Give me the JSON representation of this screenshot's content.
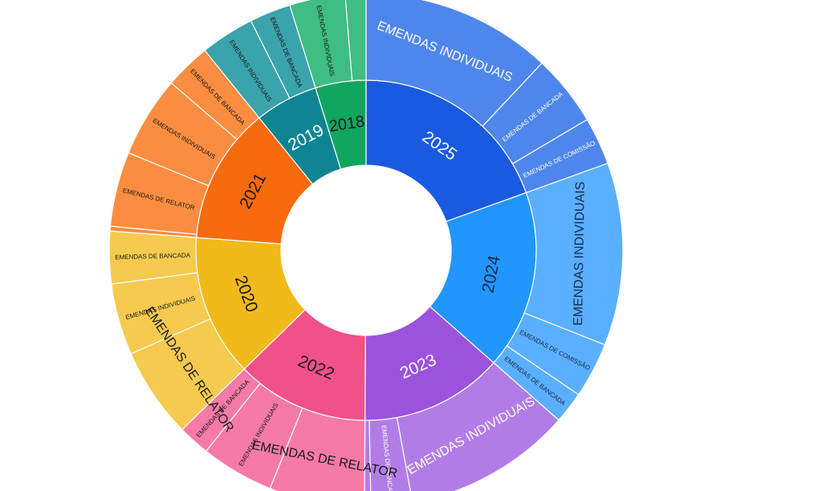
{
  "chart_data": {
    "type": "sunburst",
    "unit": "share",
    "years": [
      {
        "label": "2025",
        "color": "#1a5ae0",
        "child_color": "#4f86ec",
        "text_color": "#ffffff",
        "value": 0.195,
        "children": [
          {
            "label": "EMENDAS INDIVIDUAIS",
            "value": 0.12,
            "text_color": "#ffffff"
          },
          {
            "label": "EMENDAS DE BANCADA",
            "value": 0.045,
            "text_color": "#ffffff"
          },
          {
            "label": "EMENDAS DE COMISSÃO",
            "value": 0.03,
            "text_color": "#ffffff"
          }
        ]
      },
      {
        "label": "2024",
        "color": "#2196ff",
        "child_color": "#5aafff",
        "text_color": "#1a2a4a",
        "value": 0.17,
        "children": [
          {
            "label": "EMENDAS INDIVIDUAIS",
            "value": 0.115,
            "text_color": "#1a2a4a"
          },
          {
            "label": "EMENDAS DE COMISSÃO",
            "value": 0.035,
            "text_color": "#1a2a4a"
          },
          {
            "label": "EMENDAS DE BANCADA",
            "value": 0.02,
            "text_color": "#1a2a4a"
          }
        ]
      },
      {
        "label": "2023",
        "color": "#9b52dc",
        "child_color": "#b27ce6",
        "text_color": "#ffffff",
        "value": 0.136,
        "children": [
          {
            "label": "EMENDAS INDIVIDUAIS",
            "value": 0.106,
            "text_color": "#ffffff"
          },
          {
            "label": "EMENDAS DE BANCADA",
            "value": 0.026,
            "text_color": "#ffffff"
          },
          {
            "label": "",
            "value": 0.004,
            "text_color": "#ffffff"
          }
        ]
      },
      {
        "label": "2022",
        "color": "#f2508a",
        "child_color": "#f57aa6",
        "text_color": "#1a1a1a",
        "value": 0.126,
        "children": [
          {
            "label": "EMENDAS DE RELATOR",
            "value": 0.06,
            "text_color": "#1a1a1a"
          },
          {
            "label": "EMENDAS INDIVIDUAIS",
            "value": 0.046,
            "text_color": "#1a1a1a"
          },
          {
            "label": "EMENDAS DE BANCADA",
            "value": 0.02,
            "text_color": "#1a1a1a"
          }
        ]
      },
      {
        "label": "2020",
        "color": "#f2b91a",
        "child_color": "#f5ca4e",
        "text_color": "#1a1a1a",
        "value": 0.135,
        "children": [
          {
            "label": "EMENDAS DE RELATOR",
            "value": 0.057,
            "text_color": "#1a1a1a"
          },
          {
            "label": "EMENDAS INDIVIDUAIS",
            "value": 0.045,
            "text_color": "#1a1a1a"
          },
          {
            "label": "EMENDAS DE BANCADA",
            "value": 0.033,
            "text_color": "#1a1a1a"
          }
        ]
      },
      {
        "label": "2021",
        "color": "#f86a0e",
        "child_color": "#fa8d41",
        "text_color": "#1a1a1a",
        "value": 0.13,
        "children": [
          {
            "label": "",
            "value": 0.003,
            "text_color": "#1a1a1a"
          },
          {
            "label": "EMENDAS DE RELATOR",
            "value": 0.047,
            "text_color": "#1a1a1a"
          },
          {
            "label": "EMENDAS INDIVIDUAIS",
            "value": 0.051,
            "text_color": "#1a1a1a"
          },
          {
            "label": "EMENDAS DE BANCADA",
            "value": 0.029,
            "text_color": "#1a1a1a"
          }
        ]
      },
      {
        "label": "2019",
        "color": "#0e8592",
        "child_color": "#3aa3ab",
        "text_color": "#ffffff",
        "value": 0.06,
        "children": [
          {
            "label": "EMENDAS INDIVIDUAIS",
            "value": 0.034,
            "text_color": "#1a1a1a"
          },
          {
            "label": "EMENDAS DE BANCADA",
            "value": 0.026,
            "text_color": "#1a1a1a"
          }
        ]
      },
      {
        "label": "2018",
        "color": "#10a561",
        "child_color": "#3fbd82",
        "text_color": "#1a1a1a",
        "value": 0.048,
        "children": [
          {
            "label": "EMENDAS INDIVIDUAIS",
            "value": 0.035,
            "text_color": "#1a1a1a"
          },
          {
            "label": "",
            "value": 0.013,
            "text_color": "#1a1a1a"
          }
        ]
      }
    ]
  }
}
